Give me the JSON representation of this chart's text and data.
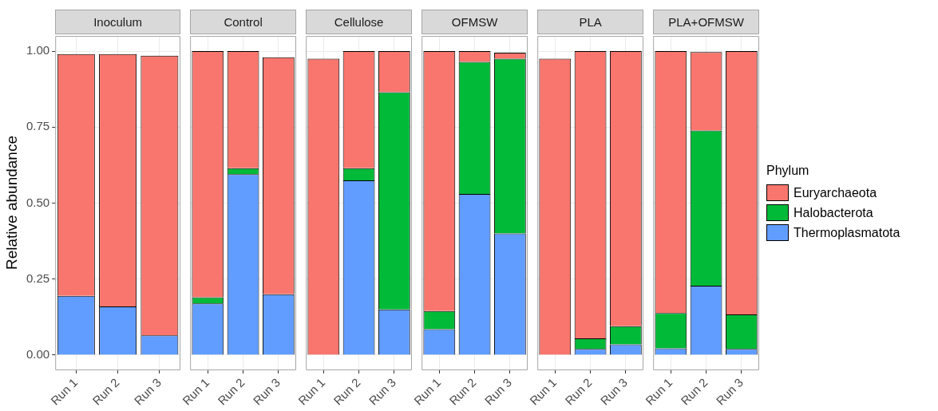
{
  "chart_data": [
    {
      "type": "bar",
      "title": "Inoculum",
      "ylabel": "Relative abundance",
      "categories": [
        "Run 1",
        "Run 2",
        "Run 3"
      ],
      "stacked": true,
      "grid": true,
      "ylim": [
        -0.05,
        1.05
      ],
      "yticks": [
        {
          "value": 0,
          "label": "0.00"
        },
        {
          "value": 0.25,
          "label": "0.25"
        },
        {
          "value": 0.5,
          "label": "0.50"
        },
        {
          "value": 0.75,
          "label": "0.75"
        },
        {
          "value": 1,
          "label": "1.00"
        }
      ],
      "series": [
        {
          "color": "#619cff",
          "values": [
            0.195,
            0.16,
            0.065
          ]
        },
        {
          "color": "#00ba38",
          "values": [
            0,
            0,
            0
          ]
        },
        {
          "color": "#f8766d",
          "values": [
            0.795,
            0.83,
            0.92
          ]
        }
      ]
    },
    {
      "type": "bar",
      "title": "Control",
      "categories": [
        "Run 1",
        "Run 2",
        "Run 3"
      ],
      "stacked": true,
      "grid": true,
      "tick_labels": "x",
      "ylim": [
        -0.05,
        1.05
      ],
      "yticks": [
        0,
        0.25,
        0.5,
        0.75,
        1
      ],
      "series": [
        {
          "color": "#619cff",
          "values": [
            0.17,
            0.595,
            0.2
          ]
        },
        {
          "color": "#00ba38",
          "values": [
            0.02,
            0.02,
            0
          ]
        },
        {
          "color": "#f8766d",
          "values": [
            0.81,
            0.385,
            0.78
          ]
        }
      ]
    },
    {
      "type": "bar",
      "title": "Cellulose",
      "categories": [
        "Run 1",
        "Run 2",
        "Run 3"
      ],
      "stacked": true,
      "grid": true,
      "tick_labels": "x",
      "ylim": [
        -0.05,
        1.05
      ],
      "yticks": [
        0,
        0.25,
        0.5,
        0.75,
        1
      ],
      "series": [
        {
          "color": "#619cff",
          "values": [
            0,
            0.575,
            0.15
          ]
        },
        {
          "color": "#00ba38",
          "values": [
            0,
            0.04,
            0.715
          ]
        },
        {
          "color": "#f8766d",
          "values": [
            0.975,
            0.385,
            0.135
          ]
        }
      ]
    },
    {
      "type": "bar",
      "title": "OFMSW",
      "categories": [
        "Run 1",
        "Run 2",
        "Run 3"
      ],
      "stacked": true,
      "grid": true,
      "tick_labels": "x",
      "ylim": [
        -0.05,
        1.05
      ],
      "yticks": [
        0,
        0.25,
        0.5,
        0.75,
        1
      ],
      "series": [
        {
          "color": "#619cff",
          "values": [
            0.085,
            0.53,
            0.4
          ]
        },
        {
          "color": "#00ba38",
          "values": [
            0.06,
            0.435,
            0.575
          ]
        },
        {
          "color": "#f8766d",
          "values": [
            0.855,
            0.035,
            0.02
          ]
        }
      ]
    },
    {
      "type": "bar",
      "title": "PLA",
      "categories": [
        "Run 1",
        "Run 2",
        "Run 3"
      ],
      "stacked": true,
      "grid": true,
      "tick_labels": "x",
      "ylim": [
        -0.05,
        1.05
      ],
      "yticks": [
        0,
        0.25,
        0.5,
        0.75,
        1
      ],
      "series": [
        {
          "color": "#619cff",
          "values": [
            0,
            0.02,
            0.035
          ]
        },
        {
          "color": "#00ba38",
          "values": [
            0,
            0.035,
            0.06
          ]
        },
        {
          "color": "#f8766d",
          "values": [
            0.975,
            0.945,
            0.905
          ]
        }
      ]
    },
    {
      "type": "bar",
      "title": "PLA+OFMSW",
      "categories": [
        "Run 1",
        "Run 2",
        "Run 3"
      ],
      "stacked": true,
      "grid": true,
      "tick_labels": "x",
      "legend": "right",
      "legend_title": "Phylum",
      "ylim": [
        -0.05,
        1.05
      ],
      "yticks": [
        0,
        0.25,
        0.5,
        0.75,
        1
      ],
      "series": [
        {
          "name": "Thermoplasmatota",
          "color": "#619cff",
          "values": [
            0.022,
            0.228,
            0.02
          ]
        },
        {
          "name": "Halobacterota",
          "color": "#00ba38",
          "values": [
            0.116,
            0.511,
            0.114
          ]
        },
        {
          "name": "Euryarchaeota",
          "color": "#f8766d",
          "values": [
            0.862,
            0.258,
            0.866
          ]
        }
      ]
    }
  ]
}
